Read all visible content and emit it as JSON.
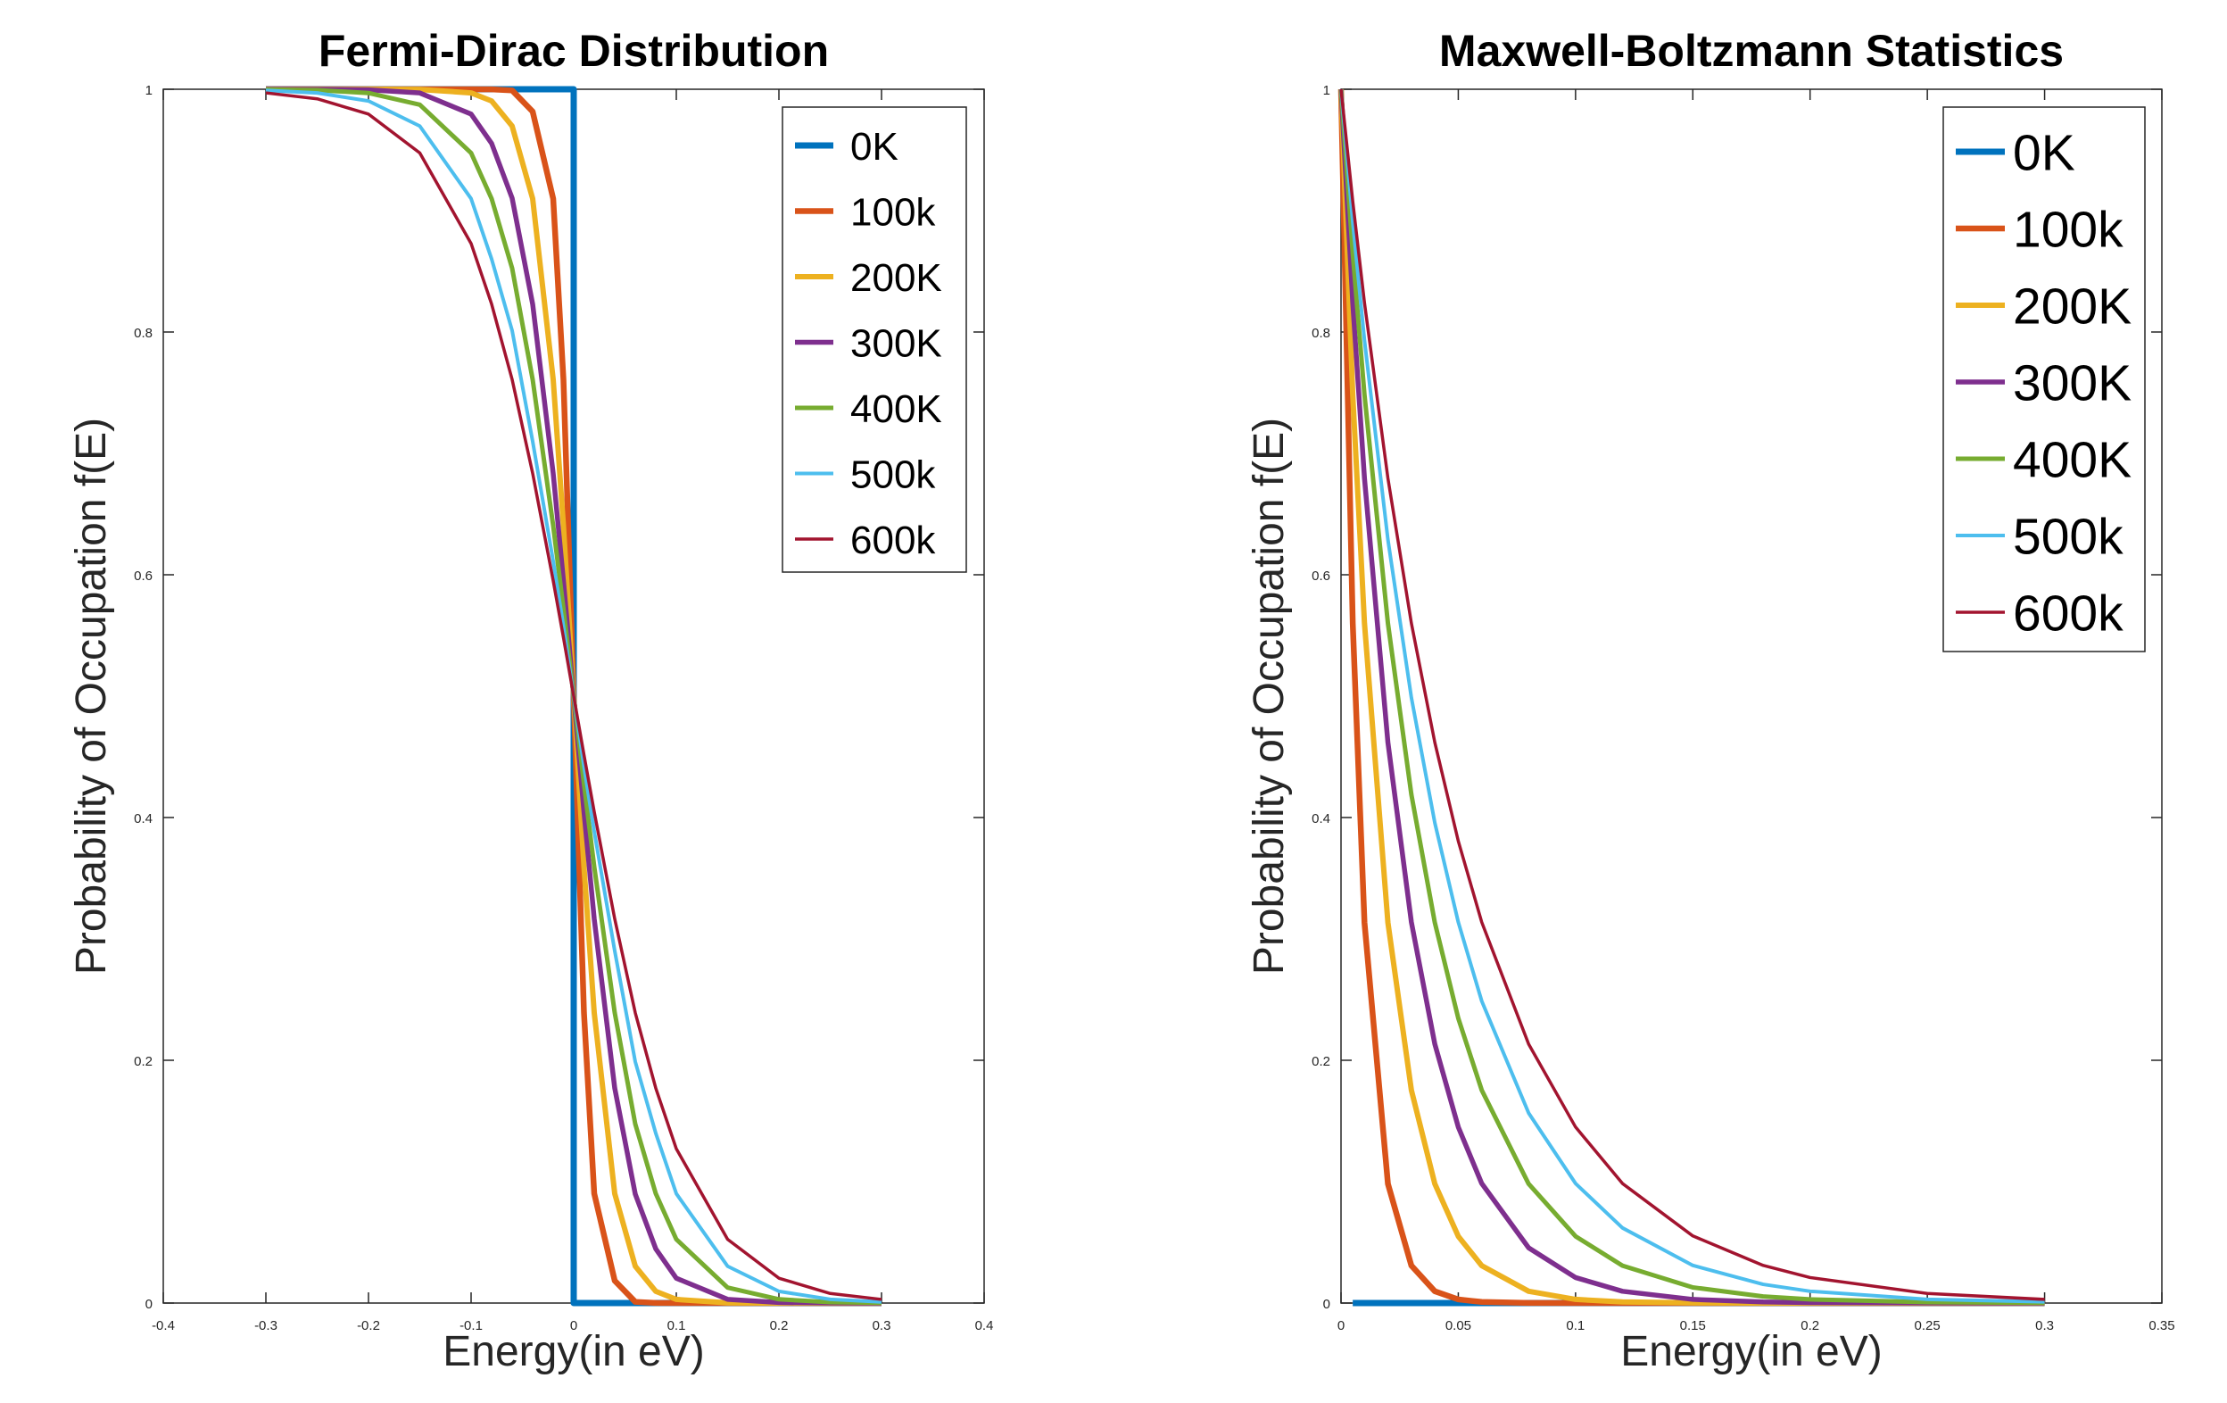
{
  "chart_data": [
    {
      "type": "line",
      "title": "Fermi-Dirac Distribution",
      "xlabel": "Energy(in eV)",
      "ylabel": "Probability of Occupation f(E)",
      "xlim": [
        -0.4,
        0.4
      ],
      "ylim": [
        0,
        1
      ],
      "xticks": [
        -0.4,
        -0.3,
        -0.2,
        -0.1,
        0,
        0.1,
        0.2,
        0.3,
        0.4
      ],
      "xtick_labels": [
        "-0.4",
        "-0.3",
        "-0.2",
        "-0.1",
        "0",
        "0.1",
        "0.2",
        "0.3",
        "0.4"
      ],
      "yticks": [
        0,
        0.2,
        0.4,
        0.6,
        0.8,
        1
      ],
      "ytick_labels": [
        "0",
        "0.2",
        "0.4",
        "0.6",
        "0.8",
        "1"
      ],
      "grid": false,
      "legend_position": "top-right",
      "x": [
        -0.3,
        -0.25,
        -0.2,
        -0.15,
        -0.1,
        -0.08,
        -0.06,
        -0.04,
        -0.02,
        -0.01,
        0,
        0.01,
        0.02,
        0.04,
        0.06,
        0.08,
        0.1,
        0.15,
        0.2,
        0.25,
        0.3
      ],
      "series": [
        {
          "name": "0K",
          "color": "#0072BD",
          "width": 7,
          "x": [
            -0.3,
            0,
            0,
            0.3
          ],
          "values": [
            1,
            1,
            0,
            0
          ]
        },
        {
          "name": "100k",
          "color": "#D95319",
          "width": 6.5,
          "values": [
            1,
            1,
            1,
            1,
            0.99999,
            0.9999,
            0.99904,
            0.98161,
            0.90986,
            0.76089,
            0.5,
            0.23911,
            0.09014,
            0.01839,
            0.00096,
            0.0001,
            1e-05,
            0,
            0,
            0,
            0
          ]
        },
        {
          "name": "200K",
          "color": "#EDB120",
          "width": 6,
          "values": [
            1,
            1,
            1,
            0.99983,
            0.99701,
            0.99036,
            0.96966,
            0.90986,
            0.76089,
            0.64045,
            0.5,
            0.35955,
            0.23911,
            0.09014,
            0.03034,
            0.00964,
            0.00299,
            0.00017,
            1e-05,
            0,
            0
          ]
        },
        {
          "name": "300K",
          "color": "#7E2F8E",
          "width": 5.5,
          "values": [
            0.99999,
            0.99994,
            0.99957,
            0.99695,
            0.97953,
            0.95535,
            0.91024,
            0.82299,
            0.68357,
            0.59523,
            0.5,
            0.40477,
            0.31643,
            0.17701,
            0.08976,
            0.04465,
            0.02047,
            0.00305,
            0.00043,
            6e-05,
            1e-05
          ]
        },
        {
          "name": "400K",
          "color": "#77AC30",
          "width": 5,
          "values": [
            0.99983,
            0.99931,
            0.9969,
            0.98728,
            0.94749,
            0.90986,
            0.85252,
            0.76089,
            0.64045,
            0.57218,
            0.5,
            0.42782,
            0.35955,
            0.23911,
            0.14748,
            0.09014,
            0.05251,
            0.01272,
            0.0031,
            0.00069,
            0.00017
          ]
        },
        {
          "name": "500k",
          "color": "#4DBEEE",
          "width": 4,
          "values": [
            0.99905,
            0.99695,
            0.99036,
            0.96966,
            0.90986,
            0.86017,
            0.8012,
            0.70993,
            0.61135,
            0.55798,
            0.5,
            0.44202,
            0.38865,
            0.29007,
            0.1988,
            0.13983,
            0.09014,
            0.03034,
            0.00964,
            0.00305,
            0.00095
          ]
        },
        {
          "name": "600k",
          "color": "#A2142F",
          "width": 3.5,
          "values": [
            0.99701,
            0.99212,
            0.97953,
            0.94749,
            0.87289,
            0.82299,
            0.76089,
            0.68357,
            0.59523,
            0.54829,
            0.5,
            0.45171,
            0.40477,
            0.31643,
            0.23911,
            0.17701,
            0.12711,
            0.05251,
            0.02047,
            0.00788,
            0.00299
          ]
        }
      ]
    },
    {
      "type": "line",
      "title": "Maxwell-Boltzmann Statistics",
      "xlabel": "Energy(in eV)",
      "ylabel": "Probability of Occupation f(E)",
      "xlim": [
        0,
        0.35
      ],
      "ylim": [
        0,
        1
      ],
      "xticks": [
        0,
        0.05,
        0.1,
        0.15,
        0.2,
        0.25,
        0.3,
        0.35
      ],
      "xtick_labels": [
        "0",
        "0.05",
        "0.1",
        "0.15",
        "0.2",
        "0.25",
        "0.3",
        "0.35"
      ],
      "yticks": [
        0,
        0.2,
        0.4,
        0.6,
        0.8,
        1
      ],
      "ytick_labels": [
        "0",
        "0.2",
        "0.4",
        "0.6",
        "0.8",
        "1"
      ],
      "grid": false,
      "legend_position": "top-right",
      "x": [
        0,
        0.005,
        0.01,
        0.02,
        0.03,
        0.04,
        0.05,
        0.06,
        0.08,
        0.1,
        0.12,
        0.15,
        0.18,
        0.2,
        0.25,
        0.3
      ],
      "series": [
        {
          "name": "0K",
          "color": "#0072BD",
          "width": 7,
          "x": [
            0.005,
            0.3
          ],
          "values": [
            0,
            0
          ]
        },
        {
          "name": "100k",
          "color": "#D95319",
          "width": 6.5,
          "values": [
            1,
            0.56,
            0.3134,
            0.0982,
            0.0308,
            0.0097,
            0.003,
            0.0009,
            0.0001,
            0,
            0,
            0,
            0,
            0,
            0,
            0
          ]
        },
        {
          "name": "200K",
          "color": "#EDB120",
          "width": 6,
          "values": [
            1,
            0.7483,
            0.56,
            0.3134,
            0.1754,
            0.0982,
            0.055,
            0.0308,
            0.0097,
            0.003,
            0.0009,
            0.0002,
            0,
            0,
            0,
            0
          ]
        },
        {
          "name": "300K",
          "color": "#7E2F8E",
          "width": 5.5,
          "values": [
            1,
            0.8241,
            0.6795,
            0.4618,
            0.3138,
            0.2133,
            0.145,
            0.0985,
            0.0455,
            0.021,
            0.0097,
            0.003,
            0.0009,
            0.0004,
            0.0001,
            0
          ]
        },
        {
          "name": "400K",
          "color": "#77AC30",
          "width": 5,
          "values": [
            1,
            0.865,
            0.7483,
            0.56,
            0.4189,
            0.3134,
            0.2346,
            0.1754,
            0.0982,
            0.055,
            0.0308,
            0.0129,
            0.0054,
            0.003,
            0.0007,
            0.0002
          ]
        },
        {
          "name": "500k",
          "color": "#4DBEEE",
          "width": 4,
          "values": [
            1,
            0.8905,
            0.7932,
            0.6289,
            0.4988,
            0.3956,
            0.3138,
            0.2488,
            0.1565,
            0.0985,
            0.0619,
            0.031,
            0.0154,
            0.0097,
            0.003,
            0.001
          ]
        },
        {
          "name": "600k",
          "color": "#A2142F",
          "width": 3.5,
          "values": [
            1,
            0.9078,
            0.8241,
            0.6795,
            0.5601,
            0.4618,
            0.3806,
            0.3138,
            0.2133,
            0.145,
            0.0985,
            0.0553,
            0.031,
            0.021,
            0.0079,
            0.003
          ]
        }
      ]
    }
  ]
}
